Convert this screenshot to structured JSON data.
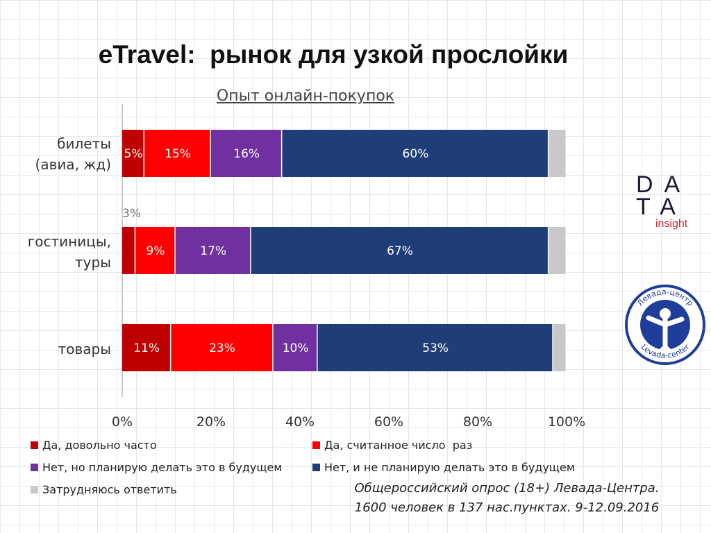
{
  "title": "eTravel:  рынок для узкой прослойки",
  "subtitle": "Опыт онлайн-покупок",
  "chart_data": {
    "type": "bar",
    "orientation": "horizontal",
    "stacked": true,
    "title": "Опыт онлайн-покупок",
    "categories": [
      "билеты\n(авиа, жд)",
      "гостиницы,\nтуры",
      "товары"
    ],
    "categories_display": [
      [
        "билеты",
        "(авиа, жд)"
      ],
      [
        "гостиницы,",
        "туры"
      ],
      [
        "товары"
      ]
    ],
    "series": [
      {
        "name": "Да, довольно часто",
        "color": "#c00000",
        "values": [
          5,
          3,
          11
        ],
        "labels": [
          "5%",
          "3%",
          "11%"
        ]
      },
      {
        "name": "Да, считанное число  раз",
        "color": "#ff0000",
        "values": [
          15,
          9,
          23
        ],
        "labels": [
          "15%",
          "9%",
          "23%"
        ]
      },
      {
        "name": "Нет, но планирую делать это в будущем",
        "color": "#7030a0",
        "values": [
          16,
          17,
          10
        ],
        "labels": [
          "16%",
          "17%",
          "10%"
        ]
      },
      {
        "name": "Нет, и не планирую делать это в будущем",
        "color": "#1f3e78",
        "values": [
          60,
          67,
          53
        ],
        "labels": [
          "60%",
          "67%",
          "53%"
        ]
      },
      {
        "name": "Затрудняюсь ответить",
        "color": "#c8c8c8",
        "values": [
          4,
          4,
          3
        ],
        "labels": [
          "",
          "",
          ""
        ]
      }
    ],
    "xlim": [
      0,
      100
    ],
    "xticks": [
      "0%",
      "20%",
      "40%",
      "60%",
      "80%",
      "100%"
    ],
    "grid": true,
    "legend_position": "bottom"
  },
  "source": {
    "line1": "Общероссийский опрос (18+) Левада-Центра.",
    "line2": "1600 человек в 137 нас.пунктах. 9-12.09.2016"
  },
  "logos": {
    "data_insight": {
      "row1": "DA",
      "row2": "TA",
      "row3": "insight"
    },
    "levada": {
      "text_top": "Левада-центр",
      "text_bottom": "Levada-center"
    }
  }
}
